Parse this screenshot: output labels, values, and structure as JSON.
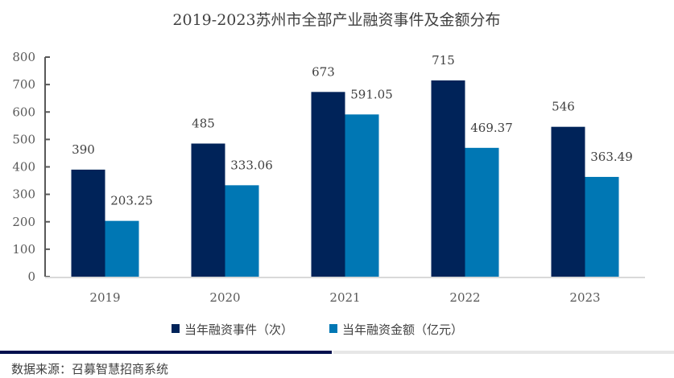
{
  "chart_data": {
    "type": "bar",
    "title": "2019-2023苏州市全部产业融资事件及金额分布",
    "categories": [
      "2019",
      "2020",
      "2021",
      "2022",
      "2023"
    ],
    "series": [
      {
        "name": "当年融资事件（次）",
        "values": [
          390,
          485,
          673,
          715,
          546
        ],
        "labels": [
          "390",
          "485",
          "673",
          "715",
          "546"
        ],
        "color": "#002359"
      },
      {
        "name": "当年融资金额（亿元）",
        "values": [
          203.25,
          333.06,
          591.05,
          469.37,
          363.49
        ],
        "labels": [
          "203.25",
          "333.06",
          "591.05",
          "469.37",
          "363.49"
        ],
        "color": "#0077B4"
      }
    ],
    "ylim": [
      0,
      800
    ],
    "yticks": [
      "0",
      "100",
      "200",
      "300",
      "400",
      "500",
      "600",
      "700",
      "800"
    ],
    "grid": false,
    "legend": "bottom"
  },
  "source": "数据来源：召募智慧招商系统",
  "colors": {
    "footer_bar_dark": "#000F4D",
    "footer_bar_light": "#E6E6E6"
  }
}
